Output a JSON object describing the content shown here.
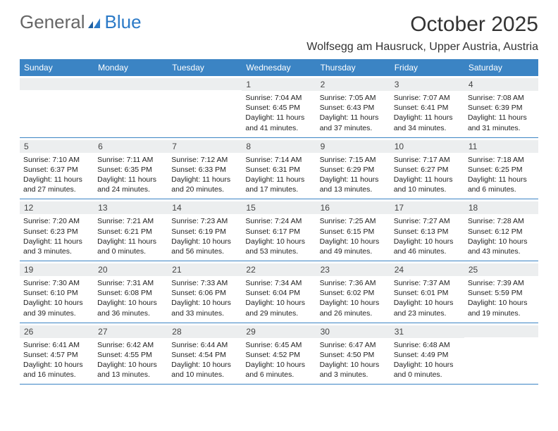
{
  "brand": {
    "part1": "General",
    "part2": "Blue"
  },
  "title": "October 2025",
  "location": "Wolfsegg am Hausruck, Upper Austria, Austria",
  "colors": {
    "header_bg": "#3b84c4",
    "header_text": "#ffffff",
    "daynum_bg": "#eceeef",
    "rule": "#3b84c4",
    "brand_blue": "#2b7ac7",
    "brand_gray": "#666666",
    "body_text": "#222222"
  },
  "day_names": [
    "Sunday",
    "Monday",
    "Tuesday",
    "Wednesday",
    "Thursday",
    "Friday",
    "Saturday"
  ],
  "weeks": [
    [
      {
        "n": "",
        "sr": "",
        "ss": "",
        "dl": ""
      },
      {
        "n": "",
        "sr": "",
        "ss": "",
        "dl": ""
      },
      {
        "n": "",
        "sr": "",
        "ss": "",
        "dl": ""
      },
      {
        "n": "1",
        "sr": "7:04 AM",
        "ss": "6:45 PM",
        "dl": "11 hours and 41 minutes."
      },
      {
        "n": "2",
        "sr": "7:05 AM",
        "ss": "6:43 PM",
        "dl": "11 hours and 37 minutes."
      },
      {
        "n": "3",
        "sr": "7:07 AM",
        "ss": "6:41 PM",
        "dl": "11 hours and 34 minutes."
      },
      {
        "n": "4",
        "sr": "7:08 AM",
        "ss": "6:39 PM",
        "dl": "11 hours and 31 minutes."
      }
    ],
    [
      {
        "n": "5",
        "sr": "7:10 AM",
        "ss": "6:37 PM",
        "dl": "11 hours and 27 minutes."
      },
      {
        "n": "6",
        "sr": "7:11 AM",
        "ss": "6:35 PM",
        "dl": "11 hours and 24 minutes."
      },
      {
        "n": "7",
        "sr": "7:12 AM",
        "ss": "6:33 PM",
        "dl": "11 hours and 20 minutes."
      },
      {
        "n": "8",
        "sr": "7:14 AM",
        "ss": "6:31 PM",
        "dl": "11 hours and 17 minutes."
      },
      {
        "n": "9",
        "sr": "7:15 AM",
        "ss": "6:29 PM",
        "dl": "11 hours and 13 minutes."
      },
      {
        "n": "10",
        "sr": "7:17 AM",
        "ss": "6:27 PM",
        "dl": "11 hours and 10 minutes."
      },
      {
        "n": "11",
        "sr": "7:18 AM",
        "ss": "6:25 PM",
        "dl": "11 hours and 6 minutes."
      }
    ],
    [
      {
        "n": "12",
        "sr": "7:20 AM",
        "ss": "6:23 PM",
        "dl": "11 hours and 3 minutes."
      },
      {
        "n": "13",
        "sr": "7:21 AM",
        "ss": "6:21 PM",
        "dl": "11 hours and 0 minutes."
      },
      {
        "n": "14",
        "sr": "7:23 AM",
        "ss": "6:19 PM",
        "dl": "10 hours and 56 minutes."
      },
      {
        "n": "15",
        "sr": "7:24 AM",
        "ss": "6:17 PM",
        "dl": "10 hours and 53 minutes."
      },
      {
        "n": "16",
        "sr": "7:25 AM",
        "ss": "6:15 PM",
        "dl": "10 hours and 49 minutes."
      },
      {
        "n": "17",
        "sr": "7:27 AM",
        "ss": "6:13 PM",
        "dl": "10 hours and 46 minutes."
      },
      {
        "n": "18",
        "sr": "7:28 AM",
        "ss": "6:12 PM",
        "dl": "10 hours and 43 minutes."
      }
    ],
    [
      {
        "n": "19",
        "sr": "7:30 AM",
        "ss": "6:10 PM",
        "dl": "10 hours and 39 minutes."
      },
      {
        "n": "20",
        "sr": "7:31 AM",
        "ss": "6:08 PM",
        "dl": "10 hours and 36 minutes."
      },
      {
        "n": "21",
        "sr": "7:33 AM",
        "ss": "6:06 PM",
        "dl": "10 hours and 33 minutes."
      },
      {
        "n": "22",
        "sr": "7:34 AM",
        "ss": "6:04 PM",
        "dl": "10 hours and 29 minutes."
      },
      {
        "n": "23",
        "sr": "7:36 AM",
        "ss": "6:02 PM",
        "dl": "10 hours and 26 minutes."
      },
      {
        "n": "24",
        "sr": "7:37 AM",
        "ss": "6:01 PM",
        "dl": "10 hours and 23 minutes."
      },
      {
        "n": "25",
        "sr": "7:39 AM",
        "ss": "5:59 PM",
        "dl": "10 hours and 19 minutes."
      }
    ],
    [
      {
        "n": "26",
        "sr": "6:41 AM",
        "ss": "4:57 PM",
        "dl": "10 hours and 16 minutes."
      },
      {
        "n": "27",
        "sr": "6:42 AM",
        "ss": "4:55 PM",
        "dl": "10 hours and 13 minutes."
      },
      {
        "n": "28",
        "sr": "6:44 AM",
        "ss": "4:54 PM",
        "dl": "10 hours and 10 minutes."
      },
      {
        "n": "29",
        "sr": "6:45 AM",
        "ss": "4:52 PM",
        "dl": "10 hours and 6 minutes."
      },
      {
        "n": "30",
        "sr": "6:47 AM",
        "ss": "4:50 PM",
        "dl": "10 hours and 3 minutes."
      },
      {
        "n": "31",
        "sr": "6:48 AM",
        "ss": "4:49 PM",
        "dl": "10 hours and 0 minutes."
      },
      {
        "n": "",
        "sr": "",
        "ss": "",
        "dl": ""
      }
    ]
  ],
  "labels": {
    "sunrise": "Sunrise: ",
    "sunset": "Sunset: ",
    "daylight": "Daylight: "
  }
}
